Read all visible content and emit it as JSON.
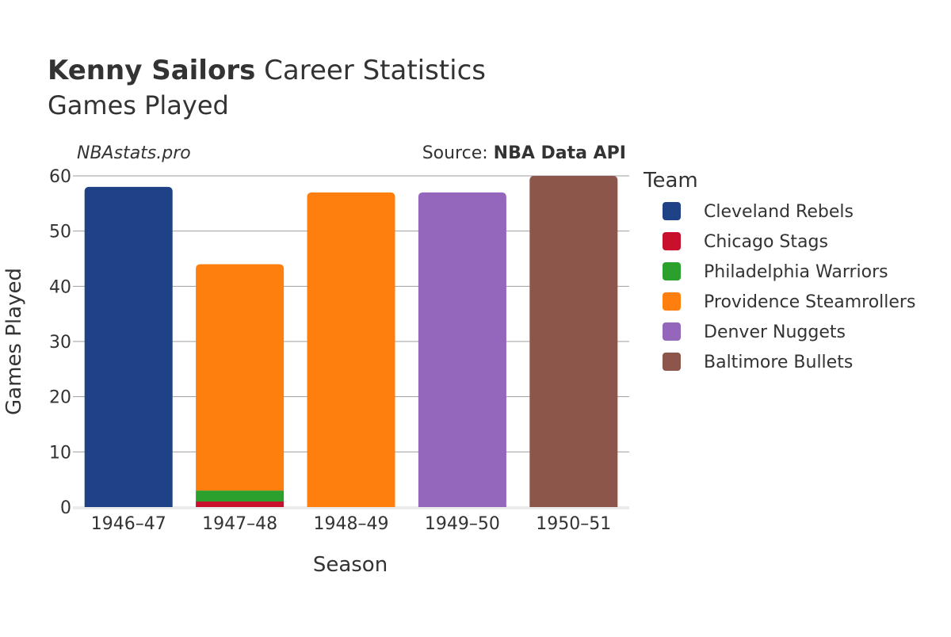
{
  "header": {
    "title_bold": "Kenny Sailors",
    "title_rest": " Career Statistics",
    "subtitle": "Games Played"
  },
  "annotations": {
    "site": "NBAstats.pro",
    "source_prefix": "Source: ",
    "source_name": "NBA Data API"
  },
  "chart_data": {
    "type": "bar",
    "stacked": true,
    "title": "Kenny Sailors Career Statistics",
    "subtitle": "Games Played",
    "xlabel": "Season",
    "ylabel": "Games Played",
    "categories": [
      "1946–47",
      "1947–48",
      "1948–49",
      "1949–50",
      "1950–51"
    ],
    "ylim": [
      0,
      60
    ],
    "yticks": [
      0,
      10,
      20,
      30,
      40,
      50,
      60
    ],
    "grid": true,
    "legend_title": "Team",
    "legend_position": "right",
    "series": [
      {
        "name": "Cleveland Rebels",
        "color": "#1f4287",
        "values": [
          58,
          0,
          0,
          0,
          0
        ]
      },
      {
        "name": "Chicago Stags",
        "color": "#c8102e",
        "values": [
          0,
          1,
          0,
          0,
          0
        ]
      },
      {
        "name": "Philadelphia Warriors",
        "color": "#2ca02c",
        "values": [
          0,
          2,
          0,
          0,
          0
        ]
      },
      {
        "name": "Providence Steamrollers",
        "color": "#ff7f0e",
        "values": [
          0,
          41,
          57,
          0,
          0
        ]
      },
      {
        "name": "Denver Nuggets",
        "color": "#9467bd",
        "values": [
          0,
          0,
          0,
          57,
          0
        ]
      },
      {
        "name": "Baltimore Bullets",
        "color": "#8c564b",
        "values": [
          0,
          0,
          0,
          0,
          60
        ]
      }
    ]
  }
}
